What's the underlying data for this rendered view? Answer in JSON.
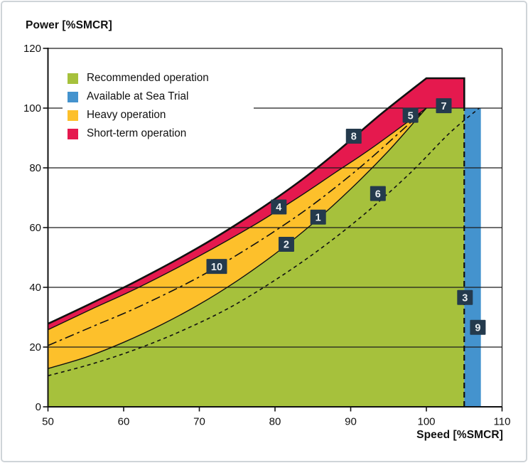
{
  "chart_data": {
    "type": "area",
    "title": "",
    "xlabel": "Speed [%SMCR]",
    "ylabel": "Power [%SMCR]",
    "xlim": [
      50,
      110
    ],
    "ylim": [
      0,
      120
    ],
    "x_ticks": [
      50,
      60,
      70,
      80,
      90,
      100,
      110
    ],
    "y_ticks": [
      0,
      20,
      40,
      60,
      80,
      100,
      120
    ],
    "grid": "horizontal",
    "legend_position": "top-left",
    "colors": {
      "recommended": "#a6c13c",
      "sea_trial": "#4493ce",
      "heavy": "#fdc02b",
      "short_term": "#e5194e",
      "grid_line": "#1c1c1c",
      "curve_line": "#111111",
      "marker_bg": "#243a4d",
      "marker_text": "#eaeff2",
      "text": "#111111"
    },
    "curves": {
      "heavy_propeller_lines_1_2": [
        [
          50,
          12.8
        ],
        [
          55,
          16.6
        ],
        [
          60,
          21.6
        ],
        [
          65,
          27.5
        ],
        [
          70,
          34.3
        ],
        [
          75,
          42.2
        ],
        [
          80,
          51.2
        ],
        [
          85,
          61.4
        ],
        [
          90,
          72.9
        ],
        [
          95,
          85.7
        ],
        [
          100,
          100
        ]
      ],
      "torque_limit_line_4": [
        [
          50,
          25.8
        ],
        [
          56,
          33
        ],
        [
          62,
          40
        ],
        [
          70,
          50.5
        ],
        [
          77,
          60.5
        ],
        [
          83,
          70
        ],
        [
          88,
          78.5
        ],
        [
          93,
          87
        ],
        [
          100,
          100
        ]
      ],
      "overload_limit_line_8": [
        [
          50,
          27.8
        ],
        [
          56,
          35
        ],
        [
          62,
          42.5
        ],
        [
          70,
          53.5
        ],
        [
          77,
          64.5
        ],
        [
          83,
          75
        ],
        [
          88,
          85
        ],
        [
          94,
          98
        ],
        [
          100,
          110
        ]
      ],
      "light_propeller_line_6": [
        [
          50,
          10.4
        ],
        [
          56,
          14.5
        ],
        [
          62,
          19.6
        ],
        [
          68,
          25.8
        ],
        [
          74,
          33.2
        ],
        [
          80,
          42.4
        ],
        [
          86,
          52.9
        ],
        [
          92,
          64.9
        ],
        [
          98,
          78.6
        ],
        [
          103,
          91.5
        ],
        [
          107,
          100
        ]
      ],
      "mid_band_line_10": [
        [
          50,
          20.5
        ],
        [
          56,
          27
        ],
        [
          62,
          33.5
        ],
        [
          70,
          43.5
        ],
        [
          77,
          54
        ],
        [
          83,
          64
        ],
        [
          88,
          73.5
        ],
        [
          93,
          84
        ],
        [
          100,
          100
        ]
      ],
      "speed_limit_line_3": [
        [
          105,
          0
        ],
        [
          105,
          100
        ]
      ]
    },
    "overload_cap": {
      "flat_y": 110,
      "flat_from_x": 100,
      "flat_to_x": 105,
      "drop_to_y": 100
    },
    "power_limit_line_7": {
      "y": 100,
      "x1": 100,
      "x2": 105
    },
    "sea_trial_region": {
      "x1": 105,
      "x2": 107.2,
      "y1": 0,
      "y2": 100
    },
    "markers": [
      {
        "n": "1",
        "x": 85.7,
        "y": 63.5
      },
      {
        "n": "2",
        "x": 81.5,
        "y": 54.4
      },
      {
        "n": "3",
        "x": 105.1,
        "y": 36.6
      },
      {
        "n": "4",
        "x": 80.5,
        "y": 66.9
      },
      {
        "n": "5",
        "x": 97.9,
        "y": 97.6
      },
      {
        "n": "6",
        "x": 93.6,
        "y": 71.4
      },
      {
        "n": "7",
        "x": 102.3,
        "y": 100.8
      },
      {
        "n": "8",
        "x": 90.4,
        "y": 90.6
      },
      {
        "n": "9",
        "x": 106.8,
        "y": 26.6
      },
      {
        "n": "10",
        "x": 72.3,
        "y": 47.0
      }
    ]
  },
  "legend": {
    "items": [
      {
        "label": "Recommended operation",
        "color_key": "recommended"
      },
      {
        "label": "Available at Sea Trial",
        "color_key": "sea_trial"
      },
      {
        "label": "Heavy operation",
        "color_key": "heavy"
      },
      {
        "label": "Short-term operation",
        "color_key": "short_term"
      }
    ]
  }
}
